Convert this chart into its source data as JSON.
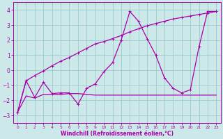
{
  "xlabel": "Windchill (Refroidissement éolien,°C)",
  "xlim": [
    -0.5,
    23.5
  ],
  "ylim": [
    -3.5,
    4.5
  ],
  "yticks": [
    -3,
    -2,
    -1,
    0,
    1,
    2,
    3,
    4
  ],
  "xticks": [
    0,
    1,
    2,
    3,
    4,
    5,
    6,
    7,
    8,
    9,
    10,
    11,
    12,
    13,
    14,
    15,
    16,
    17,
    18,
    19,
    20,
    21,
    22,
    23
  ],
  "background_color": "#cce8e8",
  "grid_color": "#99cccc",
  "line_color": "#aa00aa",
  "line1_x": [
    0,
    1,
    2,
    3,
    4,
    5,
    6,
    7,
    8,
    9,
    10,
    11,
    12,
    13,
    14,
    15,
    16,
    17,
    18,
    19,
    20,
    21,
    22,
    23
  ],
  "line1_y": [
    -2.8,
    -0.7,
    -0.35,
    -0.05,
    0.3,
    0.6,
    0.85,
    1.15,
    1.45,
    1.75,
    1.9,
    2.1,
    2.3,
    2.55,
    2.75,
    2.95,
    3.1,
    3.25,
    3.4,
    3.5,
    3.6,
    3.7,
    3.8,
    3.9
  ],
  "line2_x": [
    0,
    1,
    2,
    3,
    4,
    5,
    6,
    7,
    8,
    9,
    10,
    11,
    12,
    13,
    14,
    15,
    16,
    17,
    18,
    19,
    20,
    21,
    22,
    23
  ],
  "line2_y": [
    -2.8,
    -0.7,
    -1.8,
    -0.8,
    -1.55,
    -1.5,
    -1.5,
    -2.25,
    -1.2,
    -0.9,
    -0.1,
    0.5,
    2.0,
    3.9,
    3.25,
    2.1,
    1.0,
    -0.5,
    -1.2,
    -1.5,
    -1.3,
    1.55,
    3.9,
    3.9
  ],
  "line3_x": [
    0,
    1,
    2,
    3,
    4,
    5,
    6,
    7,
    8,
    9,
    10,
    11,
    12,
    13,
    14,
    15,
    16,
    17,
    18,
    19,
    20,
    21,
    22,
    23
  ],
  "line3_y": [
    -2.8,
    -1.7,
    -1.85,
    -1.6,
    -1.6,
    -1.6,
    -1.55,
    -1.55,
    -1.6,
    -1.65,
    -1.65,
    -1.65,
    -1.65,
    -1.65,
    -1.65,
    -1.65,
    -1.65,
    -1.65,
    -1.65,
    -1.65,
    -1.65,
    -1.65,
    -1.65,
    -1.65
  ]
}
